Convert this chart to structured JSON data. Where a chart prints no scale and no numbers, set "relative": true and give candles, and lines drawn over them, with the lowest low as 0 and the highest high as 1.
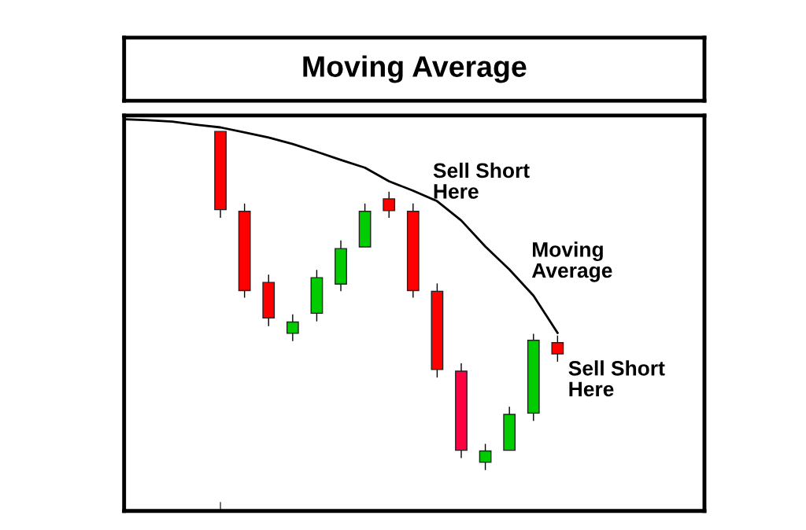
{
  "chart_data": {
    "type": "candlestick",
    "title": "Moving Average",
    "relative": true,
    "categories": [
      null,
      null,
      null,
      null,
      null,
      null,
      null,
      null,
      null,
      null,
      null,
      null,
      null,
      null,
      null,
      null,
      null,
      null,
      null
    ],
    "ohlc": [
      null,
      null,
      null,
      null,
      [
        1.0,
        1.0,
        0.745,
        0.769
      ],
      [
        0.764,
        0.787,
        0.509,
        0.53
      ],
      [
        0.554,
        0.577,
        0.425,
        0.449
      ],
      [
        0.404,
        0.46,
        0.381,
        0.437
      ],
      [
        0.463,
        0.591,
        0.439,
        0.568
      ],
      [
        0.549,
        0.678,
        0.528,
        0.654
      ],
      [
        0.659,
        0.787,
        0.659,
        0.764
      ],
      [
        0.801,
        0.822,
        0.745,
        0.766
      ],
      [
        0.764,
        0.787,
        0.509,
        0.53
      ],
      [
        0.528,
        0.551,
        0.273,
        0.297
      ],
      [
        0.292,
        0.315,
        0.035,
        0.058
      ],
      [
        0.023,
        0.077,
        0.0,
        0.056
      ],
      [
        0.058,
        0.187,
        0.058,
        0.164
      ],
      [
        0.168,
        0.402,
        0.145,
        0.383
      ],
      [
        0.376,
        0.397,
        0.32,
        0.343
      ]
    ],
    "colors": [
      null,
      null,
      null,
      null,
      "#ff0000",
      "#ff0000",
      "#ff0000",
      "#00cc00",
      "#00cc00",
      "#00cc00",
      "#00cc00",
      "#ff0000",
      "#ff0000",
      "#ff0000",
      "#ff0040",
      "#00cc00",
      "#00cc00",
      "#00cc00",
      "#ff0000"
    ],
    "series": [
      {
        "type": "line",
        "color": "#000000",
        "values": [
          1.036,
          1.033,
          1.029,
          1.02,
          1.012,
          0.997,
          0.982,
          0.963,
          0.94,
          0.916,
          0.893,
          0.853,
          0.825,
          0.794,
          0.737,
          0.66,
          0.592,
          0.515,
          0.405
        ]
      }
    ],
    "annotations": [
      "Sell Short\nHere",
      "Moving\nAverage",
      "Sell Short\nHere"
    ]
  }
}
